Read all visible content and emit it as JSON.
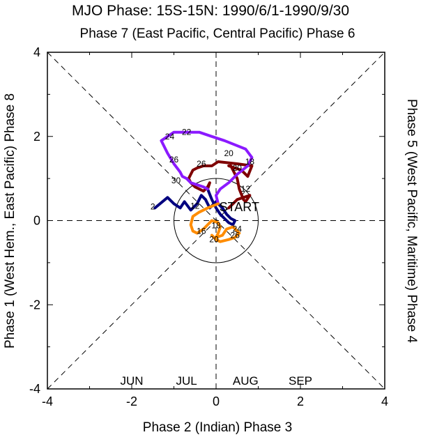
{
  "chart_data": {
    "type": "line",
    "title": "MJO Phase: 15S-15N: 1990/6/1-1990/9/30",
    "top_label": "Phase 7 (East Pacific, Central Pacific) Phase 6",
    "xlabel": "Phase 2 (Indian) Phase 3",
    "ylabel_left": "Phase 1 (West Hem., East Pacific) Phase 8",
    "ylabel_right": "Phase 5 (West Pacific, Maritime) Phase 4",
    "xlim": [
      -4,
      4
    ],
    "ylim": [
      -4,
      4
    ],
    "x_ticks": [
      "-4",
      "-2",
      "0",
      "2",
      "4"
    ],
    "y_ticks": [
      "4",
      "2",
      "0",
      "-2",
      "-4"
    ],
    "unit_circle_radius": 1,
    "start_label": "START",
    "series": [
      {
        "name": "JUN",
        "color": "#7f0000",
        "points": [
          [
            0.3,
            0.3
          ],
          [
            0.5,
            0.5
          ],
          [
            0.8,
            0.6
          ],
          [
            0.7,
            0.45
          ],
          [
            0.65,
            0.5
          ],
          [
            0.55,
            0.75
          ],
          [
            0.5,
            1.0
          ],
          [
            0.35,
            1.3
          ],
          [
            0.3,
            1.3
          ],
          [
            0.6,
            1.2
          ],
          [
            0.75,
            1.05
          ],
          [
            0.85,
            1.3
          ],
          [
            0.5,
            1.35
          ],
          [
            0.05,
            1.4
          ],
          [
            -0.1,
            1.3
          ],
          [
            -0.15,
            1.3
          ],
          [
            -0.3,
            1.3
          ],
          [
            -0.45,
            1.25
          ],
          [
            -0.55,
            1.2
          ],
          [
            -0.65,
            1.0
          ],
          [
            -0.6,
            0.9
          ],
          [
            -0.5,
            0.8
          ],
          [
            -0.3,
            0.7
          ],
          [
            -0.2,
            0.8
          ],
          [
            -0.15,
            0.9
          ],
          [
            -0.2,
            0.75
          ]
        ],
        "labels": [
          {
            "text": "12",
            "x": 0.7,
            "y": 0.75
          },
          {
            "text": "20",
            "x": 0.5,
            "y": 1.25
          },
          {
            "text": "26",
            "x": -0.35,
            "y": 1.35
          },
          {
            "text": "30",
            "x": -0.95,
            "y": 0.95
          }
        ]
      },
      {
        "name": "JUL",
        "color": "#00007f",
        "points": [
          [
            -1.45,
            0.3
          ],
          [
            -1.15,
            0.55
          ],
          [
            -1.0,
            0.4
          ],
          [
            -0.85,
            0.3
          ],
          [
            -0.75,
            0.45
          ],
          [
            -0.6,
            0.25
          ],
          [
            -0.45,
            0.4
          ],
          [
            -0.35,
            0.6
          ],
          [
            -0.25,
            0.5
          ],
          [
            -0.15,
            0.3
          ],
          [
            0.0,
            0.45
          ],
          [
            0.15,
            0.3
          ],
          [
            0.25,
            0.15
          ],
          [
            0.35,
            0.05
          ],
          [
            0.45,
            0.0
          ],
          [
            0.4,
            -0.1
          ],
          [
            0.3,
            -0.05
          ],
          [
            0.2,
            0.05
          ],
          [
            0.1,
            0.15
          ],
          [
            0.0,
            0.3
          ],
          [
            -0.1,
            0.5
          ],
          [
            -0.2,
            0.75
          ]
        ],
        "labels": [
          {
            "text": "2",
            "x": -1.5,
            "y": 0.33
          },
          {
            "text": "12",
            "x": -0.5,
            "y": 0.35
          }
        ]
      },
      {
        "name": "AUG",
        "color": "#8b1aff",
        "points": [
          [
            -0.2,
            0.75
          ],
          [
            -0.3,
            0.8
          ],
          [
            -0.45,
            0.85
          ],
          [
            -0.6,
            0.9
          ],
          [
            -0.7,
            1.0
          ],
          [
            -0.8,
            1.05
          ],
          [
            -0.85,
            1.15
          ],
          [
            -1.0,
            1.35
          ],
          [
            -1.15,
            1.6
          ],
          [
            -1.3,
            1.9
          ],
          [
            -1.0,
            2.1
          ],
          [
            -0.7,
            2.1
          ],
          [
            -0.4,
            2.1
          ],
          [
            -0.1,
            2.0
          ],
          [
            0.2,
            1.9
          ],
          [
            0.45,
            1.8
          ],
          [
            0.7,
            1.7
          ],
          [
            0.85,
            1.5
          ],
          [
            0.75,
            1.3
          ],
          [
            0.5,
            1.1
          ],
          [
            0.3,
            0.9
          ],
          [
            0.1,
            0.75
          ],
          [
            0.0,
            0.6
          ],
          [
            0.05,
            0.4
          ]
        ],
        "labels": [
          {
            "text": "24",
            "x": -1.1,
            "y": 2.0
          },
          {
            "text": "22",
            "x": -0.7,
            "y": 2.1
          },
          {
            "text": "26",
            "x": -1.0,
            "y": 1.45
          },
          {
            "text": "20",
            "x": 0.3,
            "y": 1.6
          },
          {
            "text": "18",
            "x": 0.8,
            "y": 1.4
          }
        ]
      },
      {
        "name": "SEP",
        "color": "#ff8c00",
        "points": [
          [
            0.05,
            0.4
          ],
          [
            -0.2,
            0.3
          ],
          [
            -0.4,
            0.2
          ],
          [
            -0.55,
            0.1
          ],
          [
            -0.6,
            -0.1
          ],
          [
            -0.55,
            -0.25
          ],
          [
            -0.45,
            -0.3
          ],
          [
            -0.3,
            -0.2
          ],
          [
            -0.2,
            -0.1
          ],
          [
            -0.1,
            0.0
          ],
          [
            0.05,
            -0.05
          ],
          [
            0.1,
            -0.15
          ],
          [
            0.05,
            -0.3
          ],
          [
            0.0,
            -0.4
          ],
          [
            0.15,
            -0.35
          ],
          [
            0.25,
            -0.2
          ],
          [
            0.4,
            -0.15
          ],
          [
            0.5,
            -0.25
          ],
          [
            0.55,
            -0.3
          ],
          [
            0.45,
            -0.4
          ],
          [
            0.3,
            -0.45
          ],
          [
            0.1,
            -0.5
          ],
          [
            0.0,
            -0.45
          ],
          [
            -0.1,
            -0.35
          ]
        ],
        "labels": [
          {
            "text": "16",
            "x": -0.35,
            "y": -0.25
          },
          {
            "text": "18",
            "x": 0.0,
            "y": -0.12
          },
          {
            "text": "20",
            "x": -0.05,
            "y": -0.45
          },
          {
            "text": "24",
            "x": 0.5,
            "y": -0.2
          },
          {
            "text": "26",
            "x": 0.45,
            "y": -0.35
          }
        ]
      }
    ],
    "legend": [
      "JUN",
      "JUL",
      "AUG",
      "SEP"
    ]
  }
}
